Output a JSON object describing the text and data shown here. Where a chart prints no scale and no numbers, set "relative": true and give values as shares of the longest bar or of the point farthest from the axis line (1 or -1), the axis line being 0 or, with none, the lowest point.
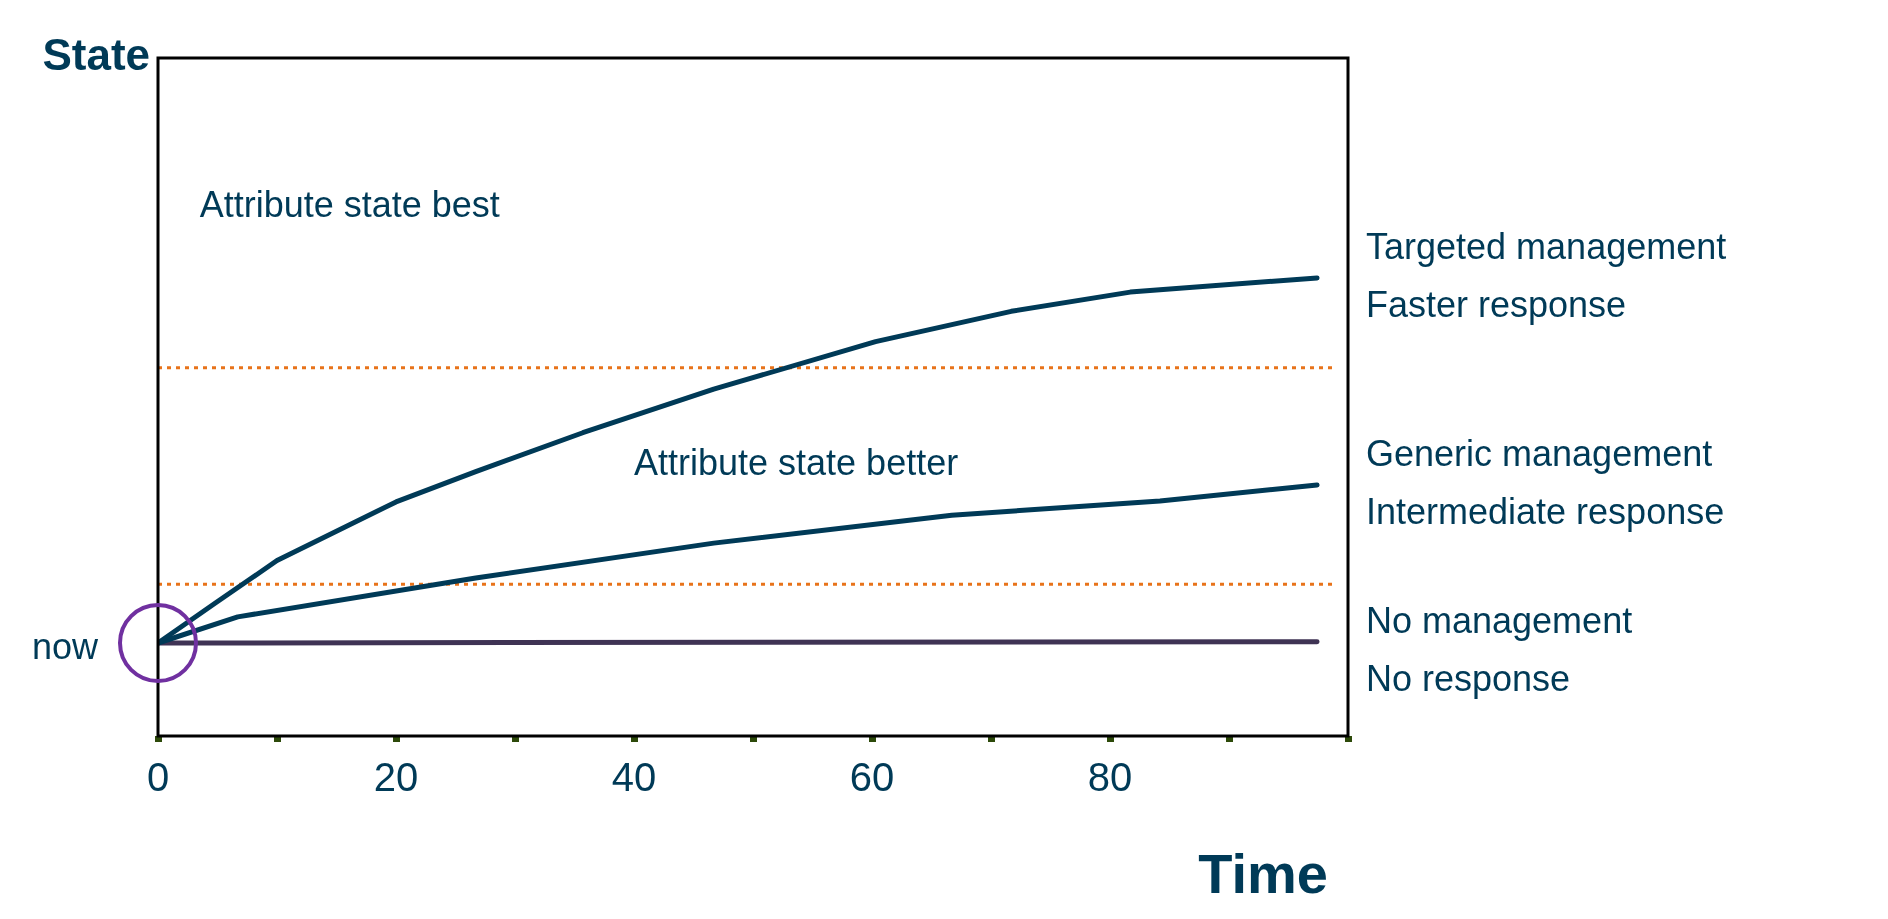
{
  "chart_data": {
    "type": "line",
    "relative": true,
    "ylabel": "State",
    "xlabel": "Time",
    "xlim": [
      0,
      100
    ],
    "xticks": [
      0,
      {
        "value": 10,
        "label": null
      },
      20,
      {
        "value": 30,
        "label": null
      },
      40,
      {
        "value": 50,
        "label": null
      },
      60,
      {
        "value": 70,
        "label": null
      },
      80,
      {
        "value": 90,
        "label": null
      },
      {
        "value": 100,
        "label": null
      }
    ],
    "series": [
      {
        "name": "Targeted management\nFaster response",
        "color": "#003a57",
        "x": [
          0,
          4.7,
          10,
          20,
          26.7,
          35.7,
          46.7,
          60.3,
          71.7,
          81.7,
          97.4
        ],
        "values": [
          0.203,
          0.288,
          0.383,
          0.511,
          0.577,
          0.662,
          0.757,
          0.861,
          0.927,
          0.969,
          1
        ]
      },
      {
        "name": "Generic management\nIntermediate response",
        "color": "#003a57",
        "x": [
          0,
          6.7,
          26.7,
          46.7,
          66.7,
          84.2,
          97.4
        ],
        "values": [
          0.203,
          0.26,
          0.345,
          0.421,
          0.482,
          0.513,
          0.548
        ]
      },
      {
        "name": "No management\nNo response",
        "color": "#3f3354",
        "x": [
          0,
          97.4
        ],
        "values": [
          0.203,
          0.206
        ]
      }
    ],
    "ref_lines": [
      {
        "axis": "y",
        "value": 0.804,
        "color": "#e8731a",
        "line_style": "dotted"
      },
      {
        "axis": "y",
        "value": 0.331,
        "color": "#e8731a",
        "line_style": "dotted"
      }
    ],
    "annotations": [
      {
        "text": "now",
        "x": 0,
        "y": 0.203
      },
      "Attribute state best",
      "Attribute state better"
    ],
    "grid": false,
    "legend": false,
    "marker": "none",
    "line_style": "solid"
  }
}
